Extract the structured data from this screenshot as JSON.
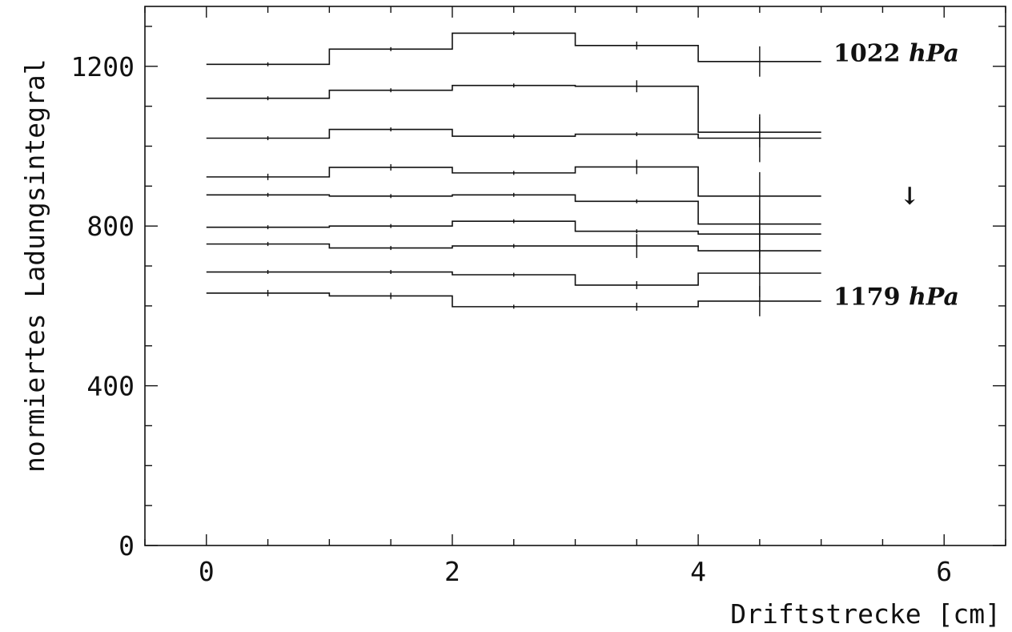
{
  "chart_data": {
    "type": "line",
    "step": true,
    "xlabel": "Driftstrecke [cm]",
    "ylabel": "normiertes Ladungsintegral",
    "xlim": [
      -0.5,
      6.5
    ],
    "ylim": [
      0,
      1350
    ],
    "xticks": [
      0,
      2,
      4,
      6
    ],
    "yticks": [
      0,
      400,
      800,
      1200
    ],
    "grid": false,
    "x_edges": [
      0,
      1,
      2,
      3,
      4,
      5
    ],
    "x_centers": [
      0.5,
      1.5,
      2.5,
      3.5,
      4.5
    ],
    "series": [
      {
        "values": [
          1205,
          1243,
          1283,
          1252,
          1212
        ],
        "errors": [
          5,
          5,
          5,
          10,
          38
        ]
      },
      {
        "values": [
          1120,
          1140,
          1152,
          1150,
          1035
        ],
        "errors": [
          5,
          5,
          5,
          15,
          38
        ]
      },
      {
        "values": [
          1020,
          1042,
          1025,
          1030,
          1020
        ],
        "errors": [
          5,
          5,
          5,
          5,
          60
        ]
      },
      {
        "values": [
          923,
          947,
          933,
          948,
          875
        ],
        "errors": [
          8,
          8,
          5,
          18,
          60
        ]
      },
      {
        "values": [
          878,
          875,
          878,
          862,
          805
        ],
        "errors": [
          5,
          5,
          5,
          5,
          60
        ]
      },
      {
        "values": [
          797,
          800,
          812,
          787,
          780
        ],
        "errors": [
          5,
          5,
          5,
          5,
          60
        ]
      },
      {
        "values": [
          755,
          745,
          750,
          750,
          738
        ],
        "errors": [
          5,
          5,
          5,
          30,
          60
        ]
      },
      {
        "values": [
          685,
          685,
          678,
          652,
          682
        ],
        "errors": [
          5,
          5,
          5,
          10,
          60
        ]
      },
      {
        "values": [
          632,
          625,
          598,
          598,
          612
        ],
        "errors": [
          8,
          8,
          5,
          10,
          38
        ]
      }
    ],
    "annotations": [
      {
        "text": "1022",
        "unit": "hPa",
        "x": 5.1,
        "y": 1213
      },
      {
        "text": "1179",
        "unit": "hPa",
        "x": 5.1,
        "y": 603
      },
      {
        "text": "↓",
        "x": 5.72,
        "y": 855
      }
    ]
  }
}
